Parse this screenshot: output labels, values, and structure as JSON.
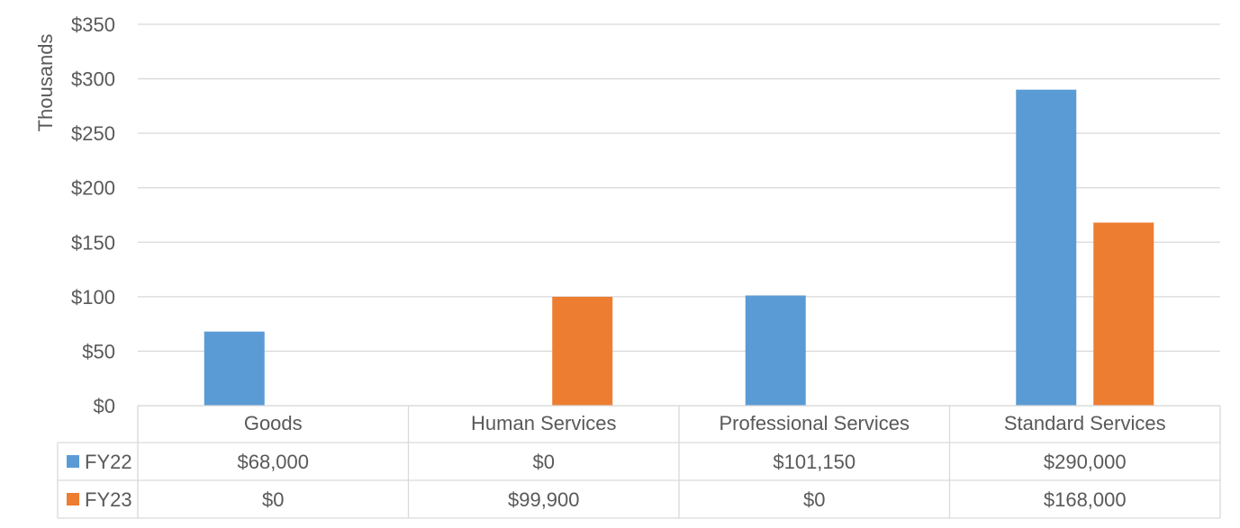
{
  "chart_data": {
    "type": "bar",
    "ylabel": "Thousands",
    "ylim": [
      0,
      350
    ],
    "ytick_step": 50,
    "ytick_labels": [
      "$0",
      "$50",
      "$100",
      "$150",
      "$200",
      "$250",
      "$300",
      "$350"
    ],
    "categories": [
      "Goods",
      "Human Services",
      "Professional Services",
      "Standard Services"
    ],
    "series": [
      {
        "name": "FY22",
        "color": "#5B9BD5",
        "values": [
          68,
          0,
          101.15,
          290
        ],
        "table_values": [
          "$68,000",
          "$0",
          "$101,150",
          "$290,000"
        ]
      },
      {
        "name": "FY23",
        "color": "#ED7D31",
        "values": [
          0,
          99.9,
          0,
          168
        ],
        "table_values": [
          "$0",
          "$99,900",
          "$0",
          "$168,000"
        ]
      }
    ],
    "grid": true,
    "legend": "data-table"
  }
}
